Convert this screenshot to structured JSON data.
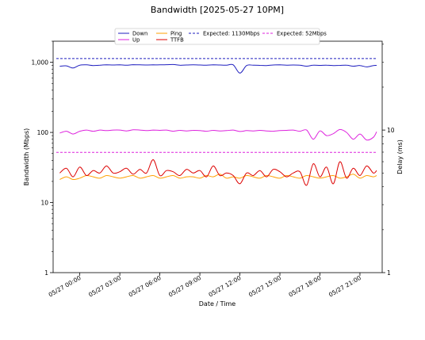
{
  "chart_data": {
    "type": "line",
    "title": "Bandwidth [2025-05-27 10PM]",
    "xlabel": "Date / Time",
    "ylabel_left": "Bandwidth (Mbps)",
    "ylabel_right": "Delay (ms)",
    "yscale_left": "log",
    "ylim_left": [
      1,
      2000
    ],
    "yscale_right": "log",
    "ylim_right": [
      1,
      42
    ],
    "xlim": [
      "05/26 22:00",
      "05/27 22:40"
    ],
    "x_tick_labels": [
      "05/27 00:00",
      "05/27 03:00",
      "05/27 06:00",
      "05/27 09:00",
      "05/27 12:00",
      "05/27 15:00",
      "05/27 18:00",
      "05/27 21:00"
    ],
    "y_left_tick_labels": [
      "1",
      "10",
      "100",
      "1,000"
    ],
    "y_right_tick_labels": [
      "1",
      "10"
    ],
    "legend_position": "top",
    "x": [
      "05/26 22:30",
      "05/26 23:00",
      "05/26 23:30",
      "05/27 00:00",
      "05/27 00:30",
      "05/27 01:00",
      "05/27 01:30",
      "05/27 02:00",
      "05/27 02:30",
      "05/27 03:00",
      "05/27 03:30",
      "05/27 04:00",
      "05/27 04:30",
      "05/27 05:00",
      "05/27 05:30",
      "05/27 06:00",
      "05/27 06:30",
      "05/27 07:00",
      "05/27 07:30",
      "05/27 08:00",
      "05/27 08:30",
      "05/27 09:00",
      "05/27 09:30",
      "05/27 10:00",
      "05/27 10:30",
      "05/27 11:00",
      "05/27 11:30",
      "05/27 12:00",
      "05/27 12:30",
      "05/27 13:00",
      "05/27 13:30",
      "05/27 14:00",
      "05/27 14:30",
      "05/27 15:00",
      "05/27 15:30",
      "05/27 16:00",
      "05/27 16:30",
      "05/27 17:00",
      "05/27 17:30",
      "05/27 18:00",
      "05/27 18:30",
      "05/27 19:00",
      "05/27 19:30",
      "05/27 20:00",
      "05/27 20:30",
      "05/27 21:00",
      "05/27 21:30",
      "05/27 22:00",
      "05/27 22:15"
    ],
    "series": [
      {
        "name": "Down",
        "axis": "left",
        "color": "#1f1fbf",
        "style": "solid",
        "values": [
          880,
          890,
          830,
          910,
          920,
          900,
          910,
          920,
          915,
          920,
          910,
          925,
          920,
          915,
          920,
          920,
          925,
          930,
          910,
          915,
          920,
          915,
          910,
          920,
          915,
          910,
          920,
          700,
          900,
          910,
          905,
          900,
          915,
          920,
          910,
          915,
          910,
          880,
          910,
          905,
          910,
          900,
          905,
          910,
          880,
          900,
          860,
          900,
          905
        ]
      },
      {
        "name": "Up",
        "axis": "left",
        "color": "#dd22dd",
        "style": "solid",
        "values": [
          98,
          104,
          95,
          104,
          108,
          104,
          108,
          106,
          108,
          108,
          105,
          109,
          108,
          106,
          108,
          107,
          108,
          104,
          107,
          105,
          107,
          106,
          104,
          107,
          105,
          106,
          108,
          103,
          106,
          105,
          107,
          105,
          104,
          106,
          107,
          108,
          104,
          108,
          80,
          105,
          90,
          96,
          110,
          100,
          80,
          95,
          78,
          85,
          102
        ]
      },
      {
        "name": "Ping",
        "axis": "right",
        "color": "#ffa000",
        "style": "solid",
        "values": [
          4.5,
          4.7,
          4.5,
          4.6,
          4.8,
          4.7,
          4.6,
          4.8,
          4.7,
          4.6,
          4.7,
          4.8,
          4.6,
          4.7,
          4.8,
          4.6,
          4.7,
          4.8,
          4.6,
          4.7,
          4.7,
          4.6,
          4.8,
          4.7,
          4.9,
          4.6,
          4.7,
          4.6,
          4.8,
          4.7,
          4.6,
          4.8,
          4.7,
          4.6,
          4.8,
          4.7,
          4.6,
          4.8,
          4.7,
          4.6,
          4.7,
          4.8,
          4.6,
          4.7,
          4.9,
          4.6,
          4.8,
          4.7,
          4.8
        ]
      },
      {
        "name": "TTFB",
        "axis": "right",
        "color": "#dd0000",
        "style": "solid",
        "values": [
          5.0,
          5.4,
          4.7,
          5.5,
          4.8,
          5.2,
          5.0,
          5.6,
          5.0,
          5.1,
          5.4,
          4.9,
          5.3,
          5.0,
          6.2,
          4.8,
          5.2,
          5.1,
          4.8,
          5.3,
          5.0,
          5.2,
          4.7,
          5.6,
          4.8,
          5.0,
          4.8,
          4.2,
          5.0,
          4.8,
          5.2,
          4.7,
          5.3,
          5.1,
          4.7,
          5.0,
          5.1,
          4.1,
          5.8,
          4.7,
          5.5,
          4.2,
          6.0,
          4.6,
          5.4,
          4.8,
          5.6,
          5.0,
          5.2
        ]
      }
    ],
    "reference_lines": [
      {
        "name": "Expected: 1130Mbps",
        "axis": "left",
        "value": 1130,
        "color": "#1f1fbf",
        "style": "dashed"
      },
      {
        "name": "Expected: 52Mbps",
        "axis": "left",
        "value": 52,
        "color": "#dd22dd",
        "style": "dashed"
      }
    ]
  }
}
